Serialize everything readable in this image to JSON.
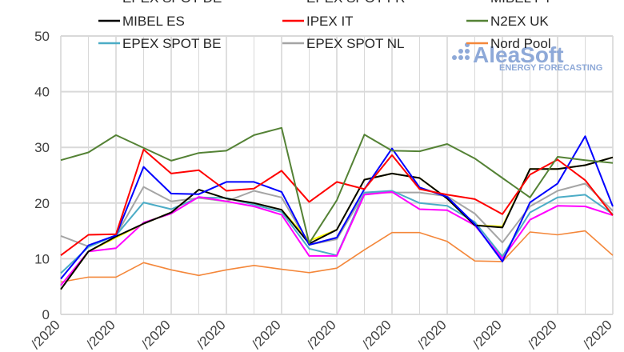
{
  "chart_data": {
    "type": "line",
    "title": "",
    "xlabel": "",
    "ylabel": "",
    "ylim": [
      0,
      50
    ],
    "yticks": [
      0,
      10,
      20,
      30,
      40,
      50
    ],
    "grid": true,
    "legend_position": "top",
    "x_tick_labels": [
      "/2020",
      "/2020",
      "/2020",
      "/2020",
      "/2020",
      "/2020",
      "/2020",
      "/2020",
      "/2020",
      "/2020",
      "/2020"
    ],
    "watermark": {
      "brand": "AleaSoft",
      "tagline": "ENERGY FORECASTING",
      "color": "#8EA9D8"
    },
    "series": [
      {
        "name": "EPEX SPOT DE",
        "color": "#0000FF",
        "values": [
          6.4,
          12.4,
          14.2,
          26.5,
          21.7,
          21.6,
          23.8,
          23.8,
          22.0,
          12.5,
          13.8,
          22.5,
          29.8,
          22.8,
          21.1,
          16.2,
          9.5,
          20.1,
          23.5,
          32.0,
          19.4
        ]
      },
      {
        "name": "EPEX SPOT FR",
        "color": "#FF00FF",
        "values": [
          5.2,
          11.3,
          11.9,
          16.5,
          18.1,
          21.1,
          20.3,
          19.4,
          17.9,
          10.5,
          10.5,
          21.5,
          22.0,
          18.9,
          18.7,
          16.0,
          10.0,
          17.0,
          19.5,
          19.4,
          17.8
        ]
      },
      {
        "name": "MIBEL PT",
        "color": "#FFFF00",
        "values": [
          4.5,
          11.3,
          13.8,
          16.3,
          18.3,
          22.4,
          20.8,
          20.0,
          18.8,
          13.2,
          15.2,
          24.2,
          25.3,
          24.5,
          20.8,
          16.0,
          15.8,
          26.1,
          26.1,
          26.8,
          28.2
        ]
      },
      {
        "name": "MIBEL ES",
        "color": "#000000",
        "values": [
          4.5,
          11.3,
          14.0,
          16.3,
          18.3,
          22.4,
          20.8,
          20.0,
          18.8,
          12.7,
          15.2,
          24.2,
          25.3,
          24.5,
          20.8,
          16.0,
          15.6,
          26.1,
          26.1,
          26.8,
          28.2
        ]
      },
      {
        "name": "IPEX IT",
        "color": "#FF0000",
        "values": [
          10.6,
          14.3,
          14.4,
          29.6,
          25.3,
          25.9,
          22.2,
          22.6,
          25.8,
          20.2,
          23.8,
          22.5,
          28.6,
          22.5,
          21.5,
          20.7,
          18.0,
          25.1,
          27.8,
          24.1,
          17.8
        ]
      },
      {
        "name": "N2EX UK",
        "color": "#548235",
        "values": [
          27.7,
          29.1,
          32.2,
          29.9,
          27.6,
          29.0,
          29.4,
          32.2,
          33.5,
          12.8,
          20.5,
          32.3,
          29.4,
          29.3,
          30.6,
          28.0,
          24.5,
          21.0,
          28.3,
          27.7,
          27.2
        ]
      },
      {
        "name": "EPEX SPOT BE",
        "color": "#4BACC6",
        "values": [
          7.4,
          12.1,
          14.2,
          20.1,
          18.9,
          21.0,
          20.9,
          19.7,
          18.4,
          11.8,
          10.6,
          21.9,
          22.2,
          20.0,
          19.5,
          16.6,
          10.4,
          18.3,
          21.0,
          21.5,
          18.0
        ]
      },
      {
        "name": "EPEX SPOT NL",
        "color": "#A5A5A5",
        "values": [
          14.1,
          12.2,
          14.2,
          22.9,
          20.3,
          20.9,
          20.3,
          22.2,
          21.0,
          12.5,
          13.5,
          21.8,
          21.9,
          21.9,
          21.2,
          18.1,
          12.9,
          19.4,
          22.2,
          23.5,
          18.6
        ]
      },
      {
        "name": "Nord Pool",
        "color": "#F4873A",
        "values": [
          5.8,
          6.7,
          6.7,
          9.3,
          8.0,
          7.0,
          8.0,
          8.8,
          8.1,
          7.5,
          8.3,
          11.6,
          14.7,
          14.7,
          13.1,
          9.6,
          9.5,
          14.8,
          14.3,
          15.0,
          10.6
        ]
      }
    ]
  }
}
